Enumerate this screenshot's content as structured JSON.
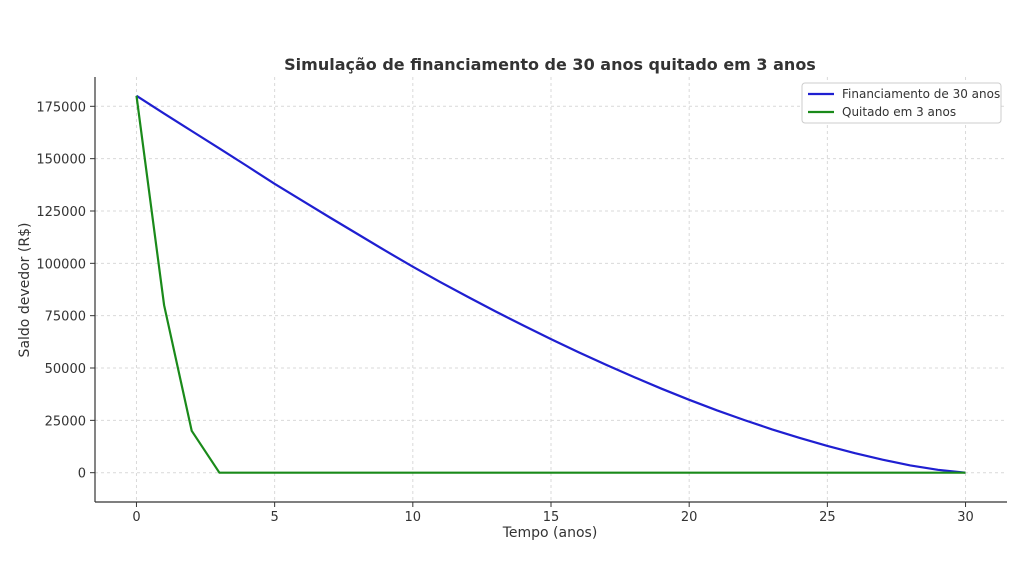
{
  "chart_data": {
    "type": "line",
    "title": "Simulação de financiamento de 30 anos quitado em 3 anos",
    "xlabel": "Tempo (anos)",
    "ylabel": "Saldo devedor (R$)",
    "xlim": [
      -1.5,
      31.5
    ],
    "ylim": [
      -14000,
      189000
    ],
    "xticks": [
      0,
      5,
      10,
      15,
      20,
      25,
      30
    ],
    "yticks": [
      0,
      25000,
      50000,
      75000,
      100000,
      125000,
      150000,
      175000
    ],
    "grid": true,
    "legend_position": "top-right",
    "series": [
      {
        "name": "Financiamento de 30 anos",
        "color": "#1f1fd1",
        "x": [
          0,
          1,
          2,
          3,
          4,
          5,
          6,
          7,
          8,
          9,
          10,
          11,
          12,
          13,
          14,
          15,
          16,
          17,
          18,
          19,
          20,
          21,
          22,
          23,
          24,
          25,
          26,
          27,
          28,
          29,
          30
        ],
        "y": [
          180000,
          171500,
          163200,
          154900,
          146500,
          138000,
          129900,
          121900,
          114000,
          106100,
          98400,
          91000,
          83900,
          77000,
          70300,
          63800,
          57500,
          51500,
          45700,
          40100,
          34800,
          29800,
          25100,
          20700,
          16600,
          12800,
          9300,
          6200,
          3500,
          1400,
          0
        ]
      },
      {
        "name": "Quitado em 3 anos",
        "color": "#1a8a1a",
        "x": [
          0,
          1,
          2,
          3,
          4,
          5,
          6,
          7,
          8,
          9,
          10,
          11,
          12,
          13,
          14,
          15,
          16,
          17,
          18,
          19,
          20,
          21,
          22,
          23,
          24,
          25,
          26,
          27,
          28,
          29,
          30
        ],
        "y": [
          180000,
          80000,
          20000,
          0,
          0,
          0,
          0,
          0,
          0,
          0,
          0,
          0,
          0,
          0,
          0,
          0,
          0,
          0,
          0,
          0,
          0,
          0,
          0,
          0,
          0,
          0,
          0,
          0,
          0,
          0,
          0
        ]
      }
    ]
  }
}
